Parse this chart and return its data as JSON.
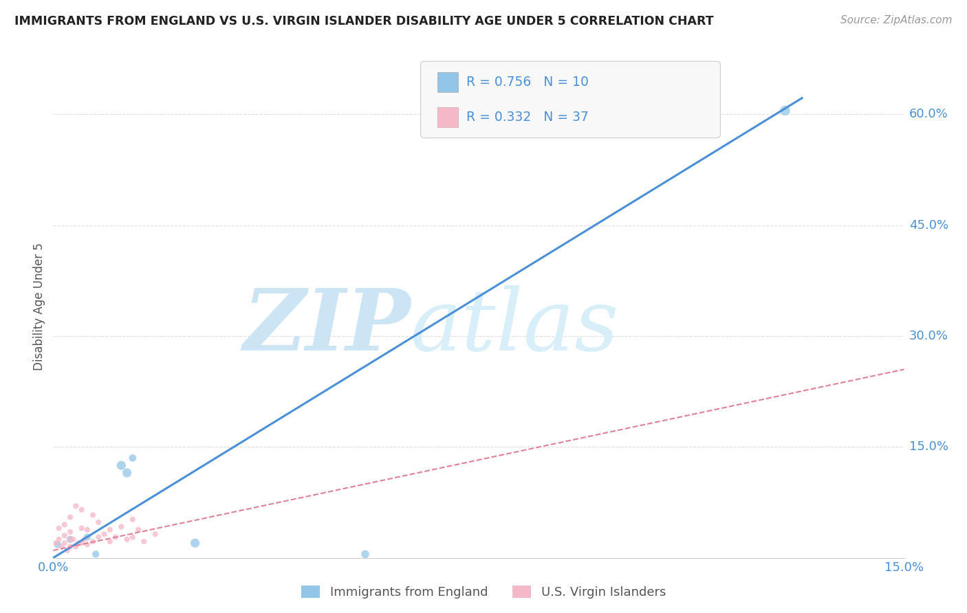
{
  "title": "IMMIGRANTS FROM ENGLAND VS U.S. VIRGIN ISLANDER DISABILITY AGE UNDER 5 CORRELATION CHART",
  "source": "Source: ZipAtlas.com",
  "ylabel": "Disability Age Under 5",
  "xlim": [
    0.0,
    0.15
  ],
  "ylim": [
    0.0,
    0.68
  ],
  "xticks": [
    0.0,
    0.03,
    0.06,
    0.09,
    0.12,
    0.15
  ],
  "xticklabels": [
    "0.0%",
    "",
    "",
    "",
    "",
    "15.0%"
  ],
  "ytick_vals": [
    0.15,
    0.3,
    0.45,
    0.6
  ],
  "ytick_labels": [
    "15.0%",
    "30.0%",
    "45.0%",
    "60.0%"
  ],
  "watermark_zip": "ZIP",
  "watermark_atlas": "atlas",
  "legend_label1": "Immigrants from England",
  "legend_label2": "U.S. Virgin Islanders",
  "blue_color": "#92c5e8",
  "pink_color": "#f5b8c8",
  "blue_line_color": "#4a90d9",
  "pink_line_color": "#e08098",
  "axis_tick_color": "#4a90d9",
  "title_color": "#222222",
  "watermark_color": "#cce5f5",
  "blue_scatter_x": [
    0.0008,
    0.003,
    0.012,
    0.013,
    0.014,
    0.0075,
    0.006,
    0.025,
    0.055,
    0.129
  ],
  "blue_scatter_y": [
    0.018,
    0.025,
    0.125,
    0.115,
    0.135,
    0.005,
    0.028,
    0.02,
    0.005,
    0.605
  ],
  "blue_scatter_sizes": [
    55,
    55,
    90,
    90,
    60,
    55,
    55,
    90,
    70,
    110
  ],
  "pink_scatter_x": [
    0.0005,
    0.001,
    0.001,
    0.0015,
    0.002,
    0.002,
    0.002,
    0.0025,
    0.003,
    0.003,
    0.003,
    0.003,
    0.0035,
    0.004,
    0.004,
    0.0045,
    0.005,
    0.005,
    0.005,
    0.0055,
    0.006,
    0.006,
    0.007,
    0.007,
    0.008,
    0.008,
    0.009,
    0.01,
    0.01,
    0.011,
    0.012,
    0.013,
    0.014,
    0.014,
    0.015,
    0.016,
    0.018
  ],
  "pink_scatter_y": [
    0.02,
    0.025,
    0.04,
    0.015,
    0.02,
    0.03,
    0.045,
    0.01,
    0.015,
    0.025,
    0.035,
    0.055,
    0.025,
    0.015,
    0.07,
    0.02,
    0.02,
    0.04,
    0.065,
    0.025,
    0.018,
    0.038,
    0.022,
    0.058,
    0.028,
    0.048,
    0.032,
    0.022,
    0.038,
    0.028,
    0.042,
    0.025,
    0.028,
    0.052,
    0.038,
    0.022,
    0.032
  ],
  "pink_scatter_sizes": [
    35,
    35,
    35,
    35,
    35,
    35,
    35,
    35,
    35,
    35,
    35,
    35,
    35,
    35,
    35,
    35,
    35,
    35,
    35,
    35,
    35,
    35,
    35,
    35,
    35,
    35,
    35,
    35,
    35,
    35,
    35,
    35,
    35,
    35,
    35,
    35,
    35
  ],
  "blue_trend_x": [
    0.0,
    0.132
  ],
  "blue_trend_y": [
    0.0,
    0.622
  ],
  "pink_trend_x": [
    0.0,
    0.15
  ],
  "pink_trend_y": [
    0.01,
    0.255
  ],
  "background_color": "#ffffff",
  "grid_color": "#dddddd"
}
